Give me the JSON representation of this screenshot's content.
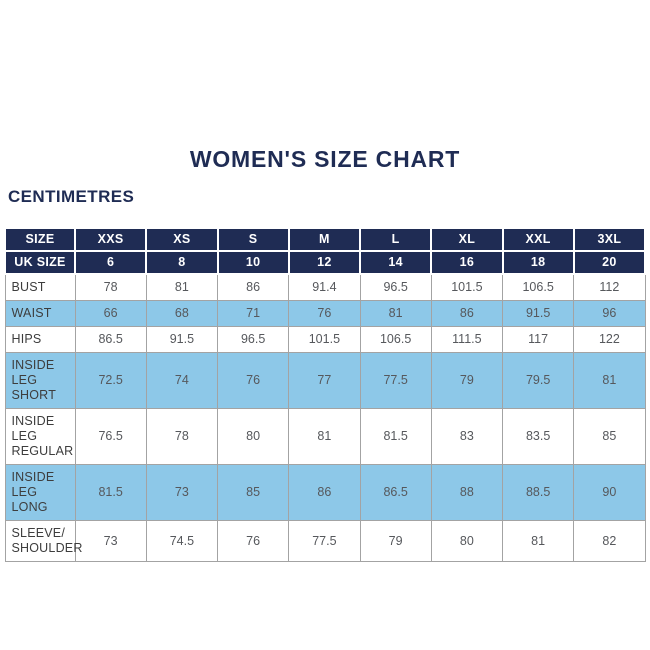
{
  "colors": {
    "navy": "#1f2c54",
    "light_blue": "#8dc8e8",
    "border": "#a3a3a3",
    "label_text": "#3d3d3d",
    "value_text": "#56585c"
  },
  "chart_data": {
    "type": "table",
    "title": "WOMEN'S SIZE CHART",
    "unit": "CENTIMETRES",
    "header_rows": [
      {
        "label": "SIZE",
        "values": [
          "XXS",
          "XS",
          "S",
          "M",
          "L",
          "XL",
          "XXL",
          "3XL"
        ]
      },
      {
        "label": "UK SIZE",
        "values": [
          "6",
          "8",
          "10",
          "12",
          "14",
          "16",
          "18",
          "20"
        ]
      }
    ],
    "rows": [
      {
        "label": "BUST",
        "shade": false,
        "values": [
          "78",
          "81",
          "86",
          "91.4",
          "96.5",
          "101.5",
          "106.5",
          "112"
        ]
      },
      {
        "label": "WAIST",
        "shade": true,
        "values": [
          "66",
          "68",
          "71",
          "76",
          "81",
          "86",
          "91.5",
          "96"
        ]
      },
      {
        "label": "HIPS",
        "shade": false,
        "values": [
          "86.5",
          "91.5",
          "96.5",
          "101.5",
          "106.5",
          "111.5",
          "117",
          "122"
        ]
      },
      {
        "label": "INSIDE LEG SHORT",
        "shade": true,
        "values": [
          "72.5",
          "74",
          "76",
          "77",
          "77.5",
          "79",
          "79.5",
          "81"
        ]
      },
      {
        "label": "INSIDE LEG REGULAR",
        "shade": false,
        "values": [
          "76.5",
          "78",
          "80",
          "81",
          "81.5",
          "83",
          "83.5",
          "85"
        ]
      },
      {
        "label": "INSIDE LEG LONG",
        "shade": true,
        "values": [
          "81.5",
          "73",
          "85",
          "86",
          "86.5",
          "88",
          "88.5",
          "90"
        ]
      },
      {
        "label": "SLEEVE/ SHOULDER",
        "shade": false,
        "values": [
          "73",
          "74.5",
          "76",
          "77.5",
          "79",
          "80",
          "81",
          "82"
        ]
      }
    ]
  }
}
